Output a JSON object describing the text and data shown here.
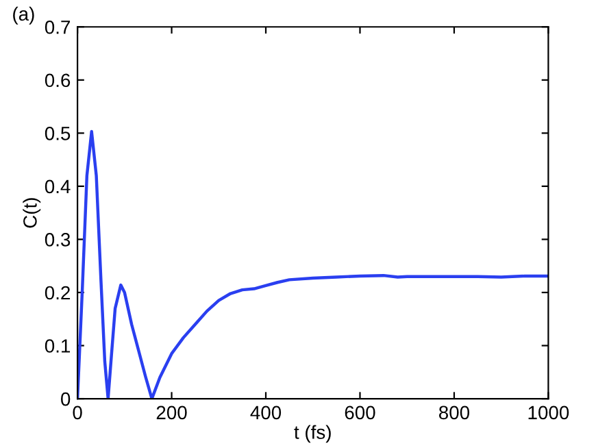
{
  "chart_data": {
    "type": "line",
    "xlabel": "t (fs)",
    "ylabel": "C(t)",
    "annotations": [
      "(a)"
    ],
    "series": [
      {
        "color": "#2a3ff0",
        "x": [
          0,
          10,
          20,
          30,
          40,
          50,
          58,
          65,
          72,
          80,
          92,
          100,
          115,
          130,
          145,
          158,
          175,
          200,
          225,
          250,
          275,
          300,
          325,
          350,
          375,
          400,
          425,
          450,
          500,
          550,
          600,
          650,
          680,
          700,
          750,
          800,
          850,
          900,
          950,
          1000
        ],
        "values": [
          0,
          0.2,
          0.42,
          0.503,
          0.42,
          0.22,
          0.07,
          0,
          0.08,
          0.17,
          0.214,
          0.2,
          0.14,
          0.09,
          0.04,
          0,
          0.04,
          0.085,
          0.115,
          0.14,
          0.165,
          0.185,
          0.198,
          0.205,
          0.207,
          0.213,
          0.219,
          0.224,
          0.227,
          0.229,
          0.231,
          0.232,
          0.229,
          0.23,
          0.23,
          0.23,
          0.23,
          0.229,
          0.231,
          0.231
        ]
      }
    ],
    "xlim": [
      0,
      1000
    ],
    "ylim": [
      0,
      0.7
    ],
    "xticks": [
      0,
      200,
      400,
      600,
      800,
      1000
    ],
    "yticks": [
      0,
      0.1,
      0.2,
      0.3,
      0.4,
      0.5,
      0.6,
      0.7
    ],
    "grid": false,
    "legend": false,
    "line_style": "solid",
    "marker": "none"
  }
}
